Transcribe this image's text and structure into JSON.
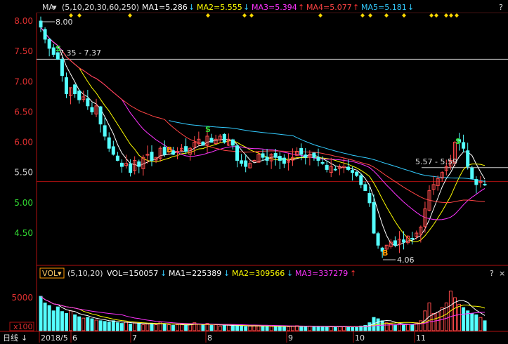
{
  "top_bar": {
    "indicator": "MA",
    "params": "(5,10,20,30,60,250)",
    "ma1": {
      "label": "MA1=5.286",
      "arrow": "↓",
      "color": "#ffffff"
    },
    "ma2": {
      "label": "MA2=5.555",
      "arrow": "↓",
      "color": "#ffff00"
    },
    "ma3": {
      "label": "MA3=5.394",
      "arrow": "↑",
      "color": "#ff33ff"
    },
    "ma4": {
      "label": "MA4=5.077",
      "arrow": "↑",
      "color": "#ff4444"
    },
    "ma5": {
      "label": "MA5=5.181",
      "arrow": "↓",
      "color": "#33ccff"
    },
    "up_arrow_color": "#ff3333",
    "down_arrow_color": "#33ccff",
    "corner": "?"
  },
  "vol_bar": {
    "indicator": "VOL",
    "params": "(5,10,20)",
    "vol": {
      "label": "VOL=150057",
      "arrow": "↓",
      "color": "#ffffff"
    },
    "ma1": {
      "label": "MA1=225389",
      "arrow": "↓",
      "color": "#ffffff"
    },
    "ma2": {
      "label": "MA2=309566",
      "arrow": "↓",
      "color": "#ffff00"
    },
    "ma3": {
      "label": "MA3=337279",
      "arrow": "↑",
      "color": "#ff33ff"
    },
    "corner": "?",
    "close": "×"
  },
  "bottom_bar": {
    "period": "日线",
    "months": [
      "2018/5",
      "6",
      "7",
      "8",
      "9",
      "10",
      "11"
    ]
  },
  "annotations": {
    "high": "8.00",
    "level1": "7.35 - 7.37",
    "level2": "5.57 - 5.59",
    "low": "4.06",
    "sell": "S",
    "buy": "B"
  },
  "colors": {
    "up": "#ff4b4b",
    "down": "#54ffff",
    "axis": "#b01010",
    "tick_text": "#e03030",
    "green_tick": "#33dd33",
    "diamond": "#ffd700"
  },
  "chart_data": [
    {
      "type": "candlestick",
      "title": "",
      "ylim": [
        4.06,
        8.0
      ],
      "yticks": [
        "8.00",
        "7.50",
        "7.00",
        "6.50",
        "6.00",
        "5.50",
        "5.00",
        "4.50"
      ],
      "xlabels": [
        "2018/5",
        "6",
        "7",
        "8",
        "9",
        "10",
        "11"
      ],
      "ohlc_close_approx": [
        7.9,
        7.7,
        7.55,
        7.45,
        7.37,
        7.1,
        6.8,
        6.9,
        6.8,
        6.7,
        6.75,
        6.6,
        6.5,
        6.6,
        6.3,
        6.1,
        5.9,
        5.8,
        5.7,
        5.6,
        5.65,
        5.5,
        5.7,
        5.6,
        5.75,
        5.8,
        5.7,
        5.75,
        5.9,
        5.8,
        5.85,
        5.8,
        5.85,
        5.9,
        5.85,
        5.9,
        6.0,
        6.05,
        5.95,
        6.1,
        6.0,
        6.05,
        6.1,
        6.0,
        6.05,
        5.95,
        5.7,
        5.65,
        5.6,
        5.65,
        5.7,
        5.8,
        5.75,
        5.7,
        5.8,
        5.75,
        5.7,
        5.65,
        5.7,
        5.75,
        5.85,
        5.8,
        5.75,
        5.8,
        5.75,
        5.7,
        5.65,
        5.55,
        5.6,
        5.55,
        5.6,
        5.6,
        5.55,
        5.5,
        5.45,
        5.3,
        5.2,
        5.0,
        4.5,
        4.3,
        4.2,
        4.3,
        4.35,
        4.3,
        4.4,
        4.35,
        4.45,
        4.4,
        4.5,
        4.6,
        4.9,
        5.2,
        5.3,
        5.4,
        5.5,
        5.6,
        5.7,
        6.0,
        6.0,
        5.9,
        5.6,
        5.4,
        5.3,
        5.35,
        5.3
      ],
      "moving_averages": [
        {
          "name": "MA1",
          "value": 5.286
        },
        {
          "name": "MA2",
          "value": 5.555
        },
        {
          "name": "MA3",
          "value": 5.394
        },
        {
          "name": "MA4",
          "value": 5.077
        },
        {
          "name": "MA5",
          "value": 5.181
        }
      ],
      "annotations": [
        "8.00",
        "7.35 - 7.37",
        "5.57 - 5.59",
        "4.06"
      ]
    },
    {
      "type": "bar",
      "title": "VOL",
      "ytick": "5000",
      "unit": "x100",
      "values": [
        5200,
        4200,
        3800,
        3000,
        3600,
        2900,
        2600,
        3000,
        2400,
        2100,
        1900,
        2000,
        1800,
        1600,
        1500,
        1400,
        1300,
        1500,
        1200,
        1100,
        1300,
        1000,
        1200,
        1100,
        900,
        1000,
        1100,
        900,
        1300,
        1000,
        900,
        800,
        900,
        1000,
        800,
        900,
        1200,
        1000,
        900,
        1100,
        800,
        900,
        700,
        800,
        900,
        700,
        800,
        700,
        600,
        700,
        800,
        700,
        600,
        700,
        650,
        600,
        700,
        650,
        600,
        700,
        750,
        600,
        650,
        700,
        600,
        650,
        600,
        550,
        600,
        580,
        620,
        600,
        560,
        540,
        600,
        700,
        800,
        1200,
        2000,
        1800,
        1500,
        1200,
        1000,
        900,
        1100,
        900,
        1000,
        950,
        1200,
        1500,
        3000,
        4200,
        2600,
        2800,
        3500,
        4200,
        6000,
        5000,
        4000,
        3500,
        3000,
        2600,
        2400,
        2000,
        1500
      ]
    }
  ]
}
